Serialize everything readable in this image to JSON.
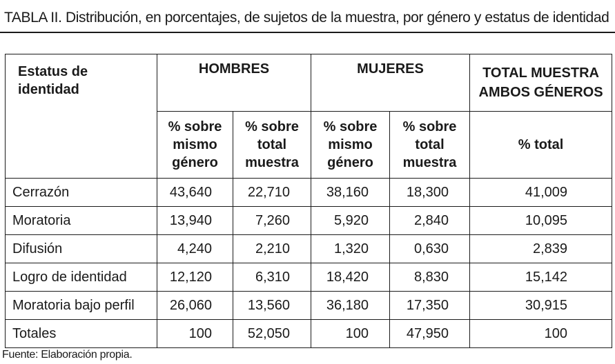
{
  "caption": {
    "label": "TABLA II.",
    "text": "Distribución, en porcentajes, de sujetos de la muestra, por género y estatus de identidad"
  },
  "table": {
    "stub_header": [
      "Estatus de",
      "identidad"
    ],
    "group_hombres": "HOMBRES",
    "group_mujeres": "MUJERES",
    "group_total": [
      "TOTAL MUESTRA",
      "AMBOS GÉNEROS"
    ],
    "subheaders": {
      "h_mismo": [
        "% sobre",
        "mismo",
        "género"
      ],
      "h_total": [
        "% sobre",
        "total",
        "muestra"
      ],
      "m_mismo": [
        "% sobre",
        "mismo",
        "género"
      ],
      "m_total": [
        "% sobre",
        "total",
        "muestra"
      ],
      "total": "% total"
    },
    "rows": [
      {
        "label": "Cerrazón",
        "values": [
          "43,640",
          "22,710",
          "38,160",
          "18,300",
          "41,009"
        ]
      },
      {
        "label": "Moratoria",
        "values": [
          "13,940",
          "7,260",
          "5,920",
          "2,840",
          "10,095"
        ]
      },
      {
        "label": "Difusión",
        "values": [
          "4,240",
          "2,210",
          "1,320",
          "0,630",
          "2,839"
        ]
      },
      {
        "label": "Logro de identidad",
        "values": [
          "12,120",
          "6,310",
          "18,420",
          "8,830",
          "15,142"
        ]
      },
      {
        "label": "Moratoria bajo perfil",
        "values": [
          "26,060",
          "13,560",
          "36,180",
          "17,350",
          "30,915"
        ]
      },
      {
        "label": "Totales",
        "values": [
          "100",
          "52,050",
          "100",
          "47,950",
          "100"
        ]
      }
    ]
  },
  "source": "Fuente:  Elaboración propia."
}
